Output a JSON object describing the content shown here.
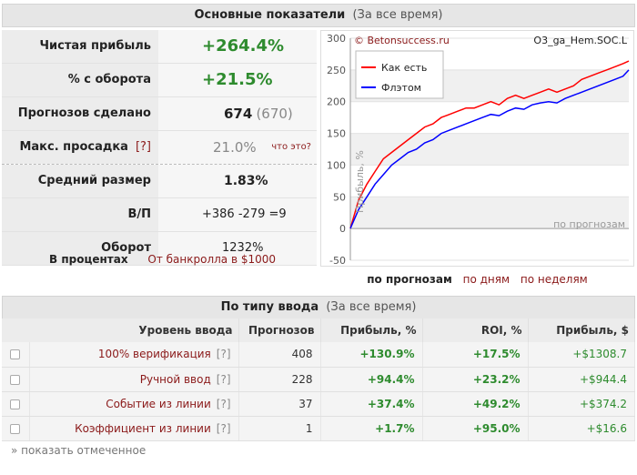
{
  "summary": {
    "title": "Основные показатели",
    "period": "(За все время)"
  },
  "stats": {
    "net_profit_label": "Чистая прибыль",
    "net_profit": "+264.4%",
    "turnover_pct_label": "% с оборота",
    "turnover_pct": "+21.5%",
    "forecasts_label": "Прогнозов сделано",
    "forecasts": "674",
    "forecasts_paren": "(670)",
    "drawdown_label": "Макс. просадка",
    "drawdown_help": "[?]",
    "drawdown": "21.0%",
    "what_is": "что это?",
    "avg_size_label": "Средний размер",
    "avg_size": "1.83%",
    "wl_label": "В/П",
    "wins": "+386",
    "losses": "-279",
    "draws": "=9",
    "turnover_label": "Оборот",
    "turnover": "1232%"
  },
  "units": {
    "percent": "В процентах",
    "bankroll": "От банкролла в $1000"
  },
  "chart": {
    "source": "© Betonsuccess.ru",
    "id": "O3_ga_Hem.SOC.L",
    "legend_as_is": "Как есть",
    "legend_flat": "Флэтом",
    "ylabel": "Прибыль, %",
    "xlabel": "по прогнозам",
    "color_as_is": "#ff0000",
    "color_flat": "#0000ff"
  },
  "chart_data": {
    "type": "line",
    "ylim": [
      -50,
      300
    ],
    "yticks": [
      -50,
      0,
      50,
      100,
      150,
      200,
      250,
      300
    ],
    "grid": true,
    "legend_position": "top-left",
    "x": [
      0,
      20,
      40,
      60,
      80,
      100,
      120,
      140,
      160,
      180,
      200,
      220,
      240,
      260,
      280,
      300,
      320,
      340,
      360,
      380,
      400,
      420,
      440,
      460,
      480,
      500,
      520,
      540,
      560,
      580,
      600,
      620,
      640,
      660,
      674
    ],
    "series": [
      {
        "name": "Как есть",
        "values": [
          0,
          45,
          70,
          90,
          110,
          120,
          130,
          140,
          150,
          160,
          165,
          175,
          180,
          185,
          190,
          190,
          195,
          200,
          195,
          205,
          210,
          205,
          210,
          215,
          220,
          215,
          220,
          225,
          235,
          240,
          245,
          250,
          255,
          260,
          264
        ]
      },
      {
        "name": "Флэтом",
        "values": [
          0,
          30,
          50,
          70,
          85,
          100,
          110,
          120,
          125,
          135,
          140,
          150,
          155,
          160,
          165,
          170,
          175,
          180,
          178,
          185,
          190,
          188,
          195,
          198,
          200,
          198,
          205,
          210,
          215,
          220,
          225,
          230,
          235,
          240,
          250
        ]
      }
    ]
  },
  "chart_links": {
    "by_forecast": "по прогнозам",
    "by_days": "по дням",
    "by_weeks": "по неделям"
  },
  "entry": {
    "title": "По типу ввода",
    "period": "(За все время)"
  },
  "entry_table": {
    "headers": [
      "Уровень ввода",
      "Прогнозов",
      "Прибыль, %",
      "ROI, %",
      "Прибыль, $"
    ],
    "rows": [
      {
        "name": "100% верификация",
        "help": "[?]",
        "count": "408",
        "profit_pct": "+130.9%",
        "roi": "+17.5%",
        "profit_usd": "+$1308.7"
      },
      {
        "name": "Ручной ввод",
        "help": "[?]",
        "count": "228",
        "profit_pct": "+94.4%",
        "roi": "+23.2%",
        "profit_usd": "+$944.4"
      },
      {
        "name": "Событие из линии",
        "help": "[?]",
        "count": "37",
        "profit_pct": "+37.4%",
        "roi": "+49.2%",
        "profit_usd": "+$374.2"
      },
      {
        "name": "Коэффициент из линии",
        "help": "[?]",
        "count": "1",
        "profit_pct": "+1.7%",
        "roi": "+95.0%",
        "profit_usd": "+$16.6"
      }
    ]
  },
  "show_selected": "» показать отмеченное"
}
